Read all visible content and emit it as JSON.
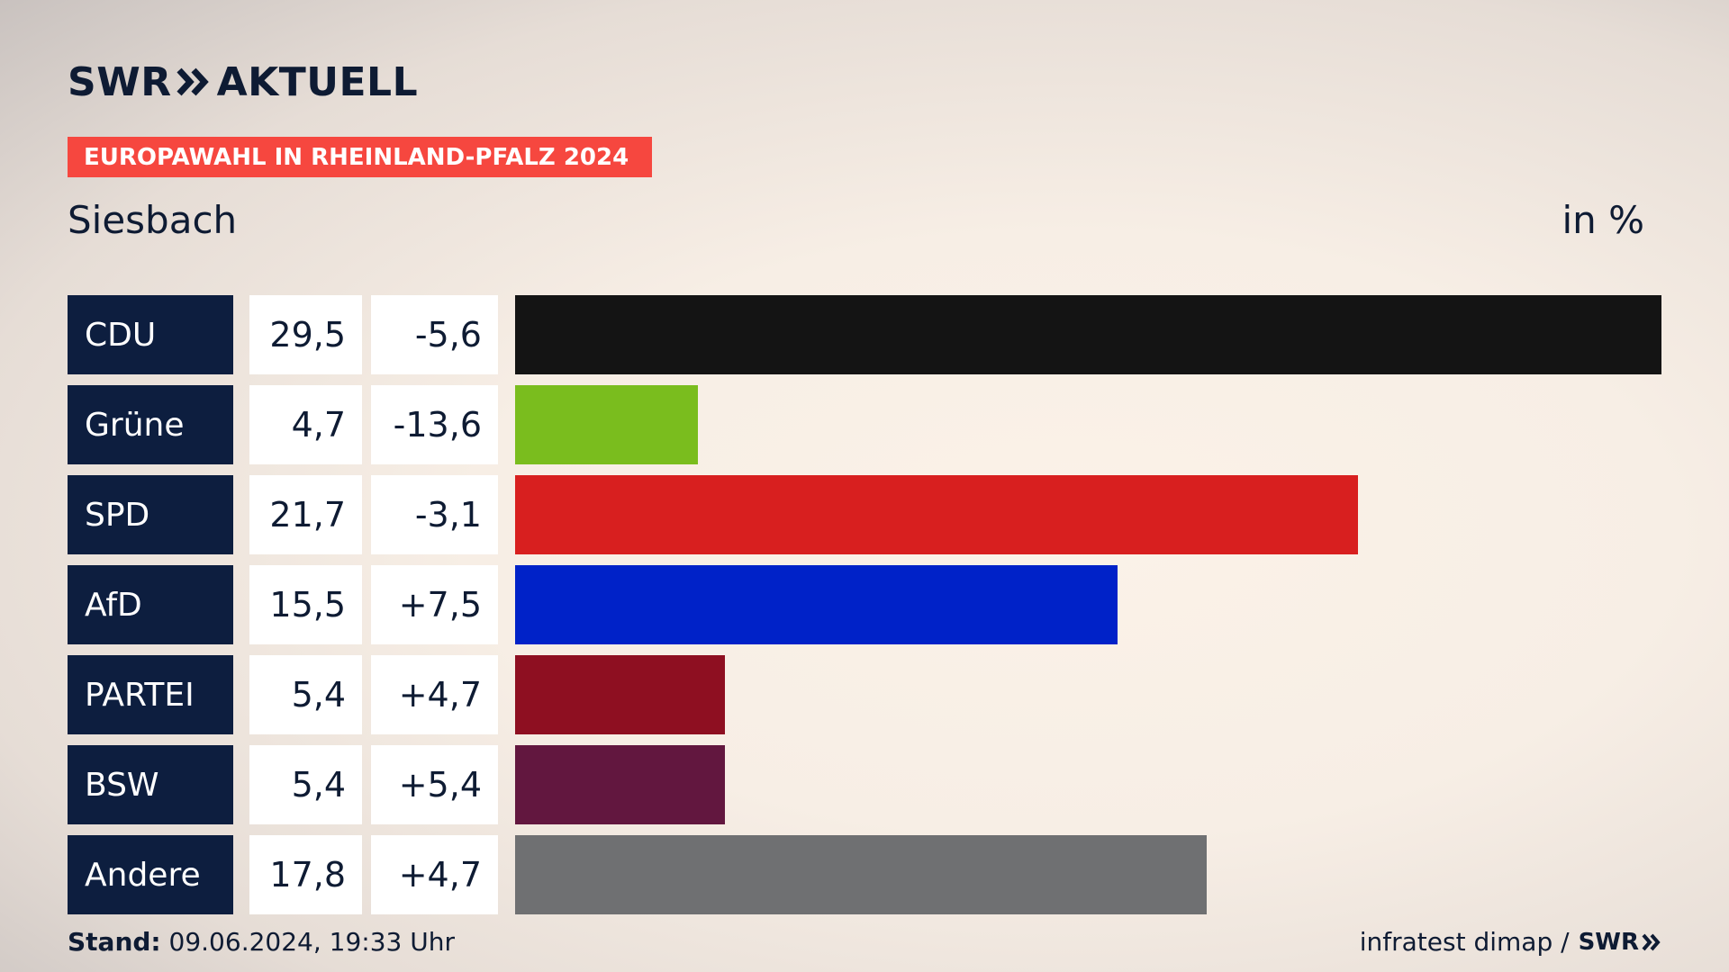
{
  "brand": {
    "name": "SWR",
    "section": "AKTUELL",
    "footer_brand": "SWR"
  },
  "banner": "EUROPAWAHL IN RHEINLAND-PFALZ 2024",
  "place": "Siesbach",
  "unit": "in %",
  "footer": {
    "stand_label": "Stand:",
    "stand_value": "09.06.2024, 19:33 Uhr",
    "source": "infratest dimap /"
  },
  "colors": {
    "accent": "#f6473f",
    "label_bg": "#0d1e3f"
  },
  "chart_data": {
    "type": "bar",
    "orientation": "horizontal",
    "categories": [
      "CDU",
      "Grüne",
      "SPD",
      "AfD",
      "PARTEI",
      "BSW",
      "Andere"
    ],
    "values": [
      29.5,
      4.7,
      21.7,
      15.5,
      5.4,
      5.4,
      17.8
    ],
    "value_labels": [
      "29,5",
      "4,7",
      "21,7",
      "15,5",
      "5,4",
      "5,4",
      "17,8"
    ],
    "changes": [
      "-5,6",
      "-13,6",
      "-3,1",
      "+7,5",
      "+4,7",
      "+5,4",
      "+4,7"
    ],
    "colors": [
      "#141414",
      "#7abd1e",
      "#d81f1f",
      "#0022c8",
      "#8e0f21",
      "#62173f",
      "#6f7072"
    ],
    "xlim": [
      0,
      29.5
    ]
  }
}
